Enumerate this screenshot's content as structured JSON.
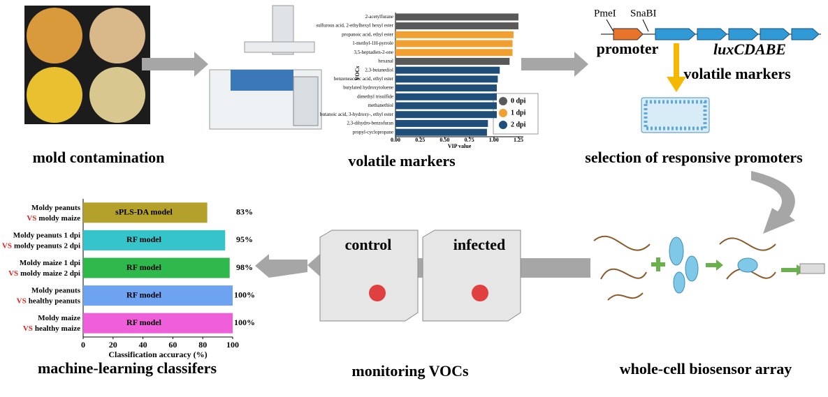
{
  "steps": {
    "mold": "mold contamination",
    "volatile": "volatile markers",
    "selection": "selection of responsive promoters",
    "biosensor": "whole-cell biosensor array",
    "monitoring": "monitoring VOCs",
    "classifiers": "machine-learning classifers"
  },
  "construct": {
    "pmei": "PmeI",
    "snabi": "SnaBI",
    "promoter": "promoter",
    "lux": "luxCDABE",
    "arrow_label": "volatile markers"
  },
  "boxes": {
    "control": "control",
    "infected": "infected"
  },
  "chart_data": [
    {
      "type": "hbar",
      "ylabel": "VOCs",
      "xlabel": "VIP value",
      "categories": [
        "2-acetylfurane",
        "sulfurous acid, 2-ethylhexyl hexyl ester",
        "propanoic acid, ethyl ester",
        "1-methyl-1H-pyrrole",
        "3,5-heptadien-2-one",
        "hexanal",
        "2,3-butanediol",
        "benzeneacetic acid, ethyl ester",
        "butylated hydroxytoluene",
        "dimethyl trisulfide",
        "methanethiol",
        "butanoic acid, 3-hydroxy-, ethyl ester",
        "2,3-dihydro-benzofuran",
        "propyl-cyclopropane"
      ],
      "series": [
        {
          "name": "0 dpi",
          "color": "#595959",
          "values": [
            1.25,
            1.25,
            null,
            null,
            null,
            1.16,
            null,
            null,
            null,
            null,
            null,
            null,
            null,
            null
          ]
        },
        {
          "name": "1 dpi",
          "color": "#f0a030",
          "values": [
            null,
            null,
            1.2,
            1.19,
            1.19,
            null,
            null,
            null,
            null,
            null,
            null,
            null,
            null,
            null
          ]
        },
        {
          "name": "2 dpi",
          "color": "#1f4e79",
          "values": [
            null,
            null,
            null,
            null,
            null,
            null,
            1.06,
            1.04,
            1.03,
            1.03,
            1.03,
            1.03,
            0.94,
            0.93
          ]
        }
      ],
      "xlim": [
        0,
        1.3
      ],
      "xticks": [
        {
          "value": 0,
          "label": "0.00"
        },
        {
          "value": 0.25,
          "label": "0.25"
        },
        {
          "value": 0.5,
          "label": "0.50"
        },
        {
          "value": 0.75,
          "label": "0.75"
        },
        {
          "value": 1,
          "label": "1.00"
        },
        {
          "value": 1.25,
          "label": "1.25"
        }
      ],
      "legend": "lower right"
    },
    {
      "type": "hbar",
      "xlabel": "Classification accuracy (%)",
      "categories": [
        {
          "top": "Moldy peanuts",
          "vs": "VS",
          "bottom": "moldy maize"
        },
        {
          "top": "Moldy peanuts 1 dpi",
          "vs": "VS",
          "bottom": "moldy peanuts 2 dpi"
        },
        {
          "top": "Moldy maize 1 dpi",
          "vs": "VS",
          "bottom": "moldy maize 2 dpi"
        },
        {
          "top": "Moldy peanuts",
          "vs": "VS",
          "bottom": "healthy peanuts"
        },
        {
          "top": "Moldy maize",
          "vs": "VS",
          "bottom": "healthy maize"
        }
      ],
      "values": [
        83,
        95,
        98,
        100,
        100
      ],
      "value_labels": [
        "83%",
        "95%",
        "98%",
        "100%",
        "100%"
      ],
      "bar_labels": [
        "sPLS-DA model",
        "RF model",
        "RF model",
        "RF model",
        "RF model"
      ],
      "colors": [
        "#b3a12b",
        "#35c4c9",
        "#2fb84c",
        "#6ea3f2",
        "#ee5fd9"
      ],
      "xlim": [
        0,
        100
      ],
      "xticks": [
        0,
        20,
        40,
        60,
        80,
        100
      ]
    }
  ]
}
